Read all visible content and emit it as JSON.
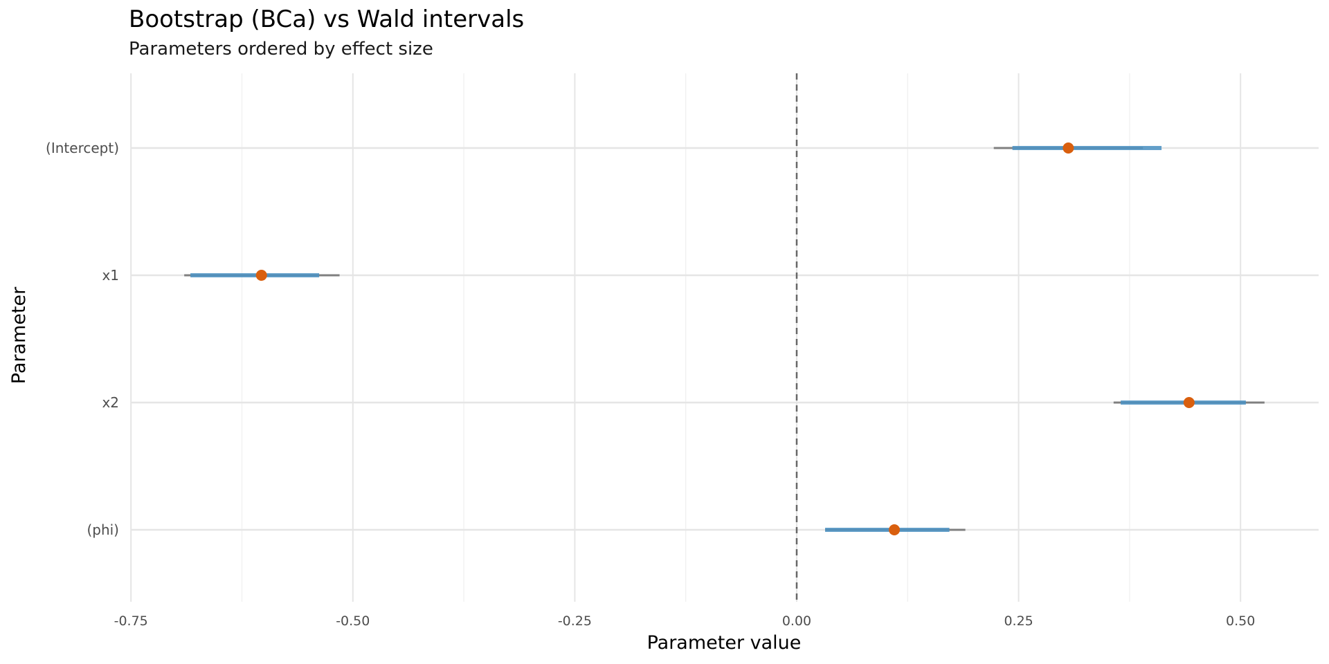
{
  "chart_data": {
    "type": "interval",
    "title": "Bootstrap (BCa) vs Wald intervals",
    "subtitle": "Parameters ordered by effect size",
    "xlabel": "Parameter value",
    "ylabel": "Parameter",
    "xlim": [
      -0.75,
      0.58
    ],
    "x_ticks": [
      -0.75,
      -0.5,
      -0.25,
      0.0,
      0.25,
      0.5
    ],
    "x_tick_labels": [
      "-0.75",
      "-0.50",
      "-0.25",
      "0.00",
      "0.25",
      "0.50"
    ],
    "reference_line": 0.0,
    "grid": true,
    "categories": [
      "(Intercept)",
      "x1",
      "x2",
      "(phi)"
    ],
    "estimates": [
      0.306,
      -0.603,
      0.442,
      0.11
    ],
    "series": [
      {
        "kind": "wald",
        "lower": [
          0.222,
          -0.69,
          0.357,
          0.032
        ],
        "upper": [
          0.39,
          -0.515,
          0.527,
          0.19
        ]
      },
      {
        "kind": "bca",
        "lower": [
          0.243,
          -0.683,
          0.365,
          0.032
        ],
        "upper": [
          0.411,
          -0.538,
          0.506,
          0.172
        ]
      }
    ],
    "colors": {
      "estimate": "#d95f0e",
      "wald": "#7f7f7f",
      "bca": "#4a90c2",
      "reference_line": "#666666",
      "grid_major": "#e5e5e5",
      "grid_minor": "#f0f0f0",
      "axis_text": "#4d4d4d"
    }
  }
}
